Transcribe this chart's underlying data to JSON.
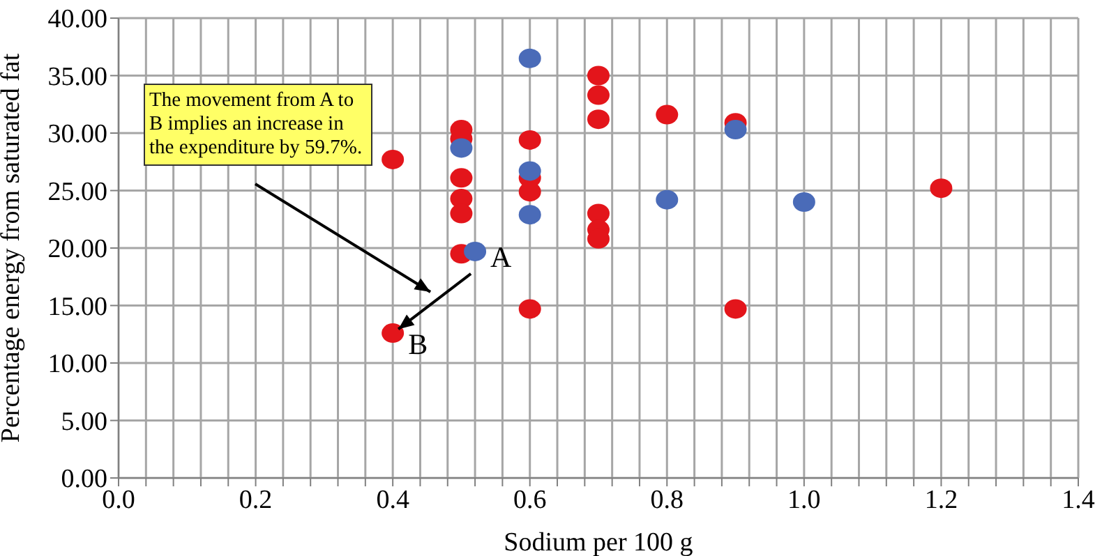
{
  "chart_data": {
    "type": "scatter",
    "xlabel": "Sodium per 100 g",
    "ylabel": "Percentage energy from saturated fat",
    "xlim": [
      0,
      1.4
    ],
    "ylim": [
      0,
      40
    ],
    "xticks": [
      {
        "value": 0,
        "label": "0.0"
      },
      {
        "value": 0.04,
        "label": null
      },
      {
        "value": 0.08,
        "label": null
      },
      {
        "value": 0.12,
        "label": null
      },
      {
        "value": 0.16,
        "label": null
      },
      {
        "value": 0.2,
        "label": "0.2"
      },
      {
        "value": 0.24,
        "label": null
      },
      {
        "value": 0.28,
        "label": null
      },
      {
        "value": 0.32,
        "label": null
      },
      {
        "value": 0.36,
        "label": null
      },
      {
        "value": 0.4,
        "label": "0.4"
      },
      {
        "value": 0.44,
        "label": null
      },
      {
        "value": 0.48,
        "label": null
      },
      {
        "value": 0.52,
        "label": null
      },
      {
        "value": 0.56,
        "label": null
      },
      {
        "value": 0.6,
        "label": "0.6"
      },
      {
        "value": 0.64,
        "label": null
      },
      {
        "value": 0.68,
        "label": null
      },
      {
        "value": 0.72,
        "label": null
      },
      {
        "value": 0.76,
        "label": null
      },
      {
        "value": 0.8,
        "label": "0.8"
      },
      {
        "value": 0.84,
        "label": null
      },
      {
        "value": 0.88,
        "label": null
      },
      {
        "value": 0.92,
        "label": null
      },
      {
        "value": 0.96,
        "label": null
      },
      {
        "value": 1.0,
        "label": "1.0"
      },
      {
        "value": 1.04,
        "label": null
      },
      {
        "value": 1.08,
        "label": null
      },
      {
        "value": 1.12,
        "label": null
      },
      {
        "value": 1.16,
        "label": null
      },
      {
        "value": 1.2,
        "label": "1.2"
      },
      {
        "value": 1.24,
        "label": null
      },
      {
        "value": 1.28,
        "label": null
      },
      {
        "value": 1.32,
        "label": null
      },
      {
        "value": 1.36,
        "label": null
      },
      {
        "value": 1.4,
        "label": "1.4"
      }
    ],
    "yticks": [
      {
        "value": 0,
        "label": "0.00"
      },
      {
        "value": 5,
        "label": "5.00"
      },
      {
        "value": 10,
        "label": "10.00"
      },
      {
        "value": 15,
        "label": "15.00"
      },
      {
        "value": 20,
        "label": "20.00"
      },
      {
        "value": 25,
        "label": "25.00"
      },
      {
        "value": 30,
        "label": "30.00"
      },
      {
        "value": 35,
        "label": "35.00"
      },
      {
        "value": 40,
        "label": "40.00"
      }
    ],
    "grid": true,
    "marker": "circle",
    "series": [
      {
        "color": "#e3151b",
        "x": [
          0.4,
          0.4,
          0.5,
          0.5,
          0.5,
          0.5,
          0.5,
          0.5,
          0.6,
          0.6,
          0.6,
          0.6,
          0.7,
          0.7,
          0.7,
          0.7,
          0.7,
          0.7,
          0.8,
          0.9,
          0.9,
          1.2
        ],
        "values": [
          27.7,
          12.6,
          30.3,
          29.5,
          26.1,
          24.3,
          23.0,
          19.5,
          29.4,
          26.1,
          24.9,
          14.7,
          35.0,
          33.3,
          31.2,
          23.0,
          21.6,
          20.8,
          31.6,
          30.9,
          14.7,
          25.2
        ]
      },
      {
        "color": "#4a6bb8",
        "x": [
          0.5,
          0.52,
          0.6,
          0.6,
          0.6,
          0.8,
          0.9,
          1.0
        ],
        "values": [
          28.7,
          19.7,
          36.5,
          26.7,
          22.9,
          24.2,
          30.3,
          24.0
        ]
      }
    ],
    "annotations": [
      "The movement from A to B implies an increase in the expenditure by 59.7%.",
      {
        "text": "A",
        "x": 0.52,
        "y": 19.7
      },
      {
        "text": "B",
        "x": 0.4,
        "y": 12.7
      }
    ]
  }
}
